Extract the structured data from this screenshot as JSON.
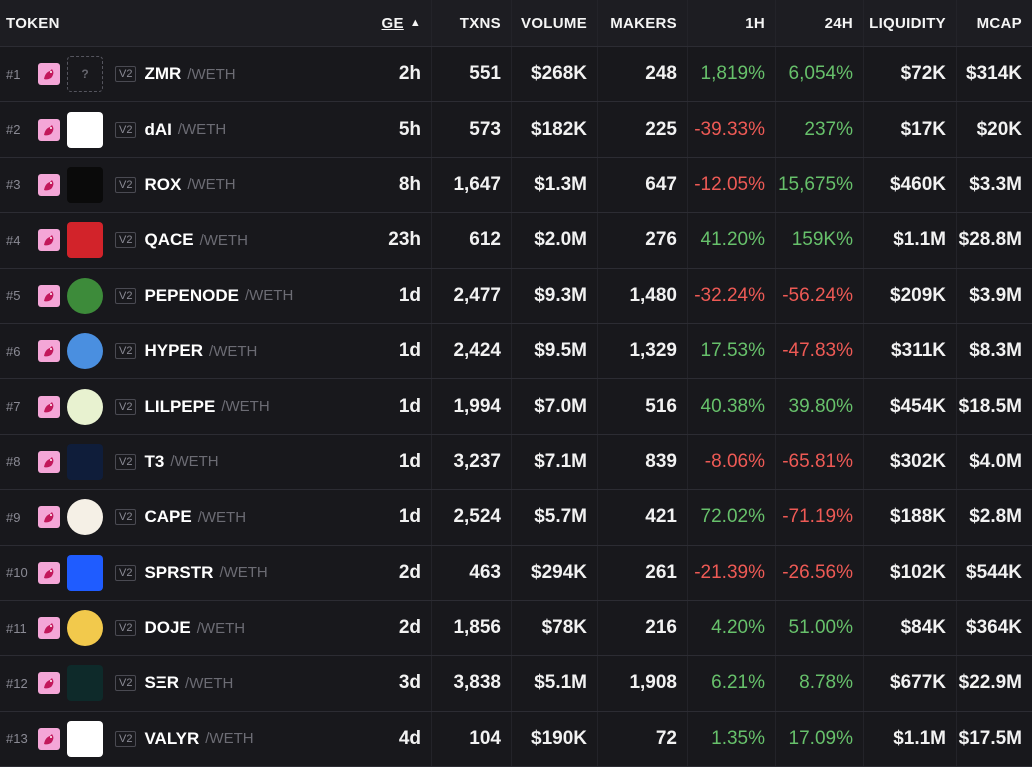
{
  "header": {
    "token": "TOKEN",
    "age": "GE",
    "txns": "TXNS",
    "volume": "VOLUME",
    "makers": "MAKERS",
    "h1": "1H",
    "h24": "24H",
    "liquidity": "LIQUIDITY",
    "mcap": "MCAP",
    "sort_icon": "▲"
  },
  "dex_badge": "V2",
  "quote": "/WETH",
  "rows": [
    {
      "rank": "#1",
      "symbol": "ZMR",
      "age": "2h",
      "txns": "551",
      "volume": "$268K",
      "makers": "248",
      "h1": "1,819%",
      "h24": "6,054%",
      "liq": "$72K",
      "mcap": "$314K",
      "h1_dir": "pos",
      "h24_dir": "pos",
      "logo": "placeholder",
      "logo_text": "?"
    },
    {
      "rank": "#2",
      "symbol": "dAI",
      "age": "5h",
      "txns": "573",
      "volume": "$182K",
      "makers": "225",
      "h1": "-39.33%",
      "h24": "237%",
      "liq": "$17K",
      "mcap": "$20K",
      "h1_dir": "neg",
      "h24_dir": "pos",
      "logo": "white",
      "logo_text": ""
    },
    {
      "rank": "#3",
      "symbol": "ROX",
      "age": "8h",
      "txns": "1,647",
      "volume": "$1.3M",
      "makers": "647",
      "h1": "-12.05%",
      "h24": "15,675%",
      "liq": "$460K",
      "mcap": "$3.3M",
      "h1_dir": "neg",
      "h24_dir": "pos",
      "logo": "black",
      "logo_text": ""
    },
    {
      "rank": "#4",
      "symbol": "QACE",
      "age": "23h",
      "txns": "612",
      "volume": "$2.0M",
      "makers": "276",
      "h1": "41.20%",
      "h24": "159K%",
      "liq": "$1.1M",
      "mcap": "$28.8M",
      "h1_dir": "pos",
      "h24_dir": "pos",
      "logo": "red",
      "logo_text": ""
    },
    {
      "rank": "#5",
      "symbol": "PEPENODE",
      "age": "1d",
      "txns": "2,477",
      "volume": "$9.3M",
      "makers": "1,480",
      "h1": "-32.24%",
      "h24": "-56.24%",
      "liq": "$209K",
      "mcap": "$3.9M",
      "h1_dir": "neg",
      "h24_dir": "neg",
      "logo": "green",
      "logo_text": ""
    },
    {
      "rank": "#6",
      "symbol": "HYPER",
      "age": "1d",
      "txns": "2,424",
      "volume": "$9.5M",
      "makers": "1,329",
      "h1": "17.53%",
      "h24": "-47.83%",
      "liq": "$311K",
      "mcap": "$8.3M",
      "h1_dir": "pos",
      "h24_dir": "neg",
      "logo": "blue",
      "logo_text": ""
    },
    {
      "rank": "#7",
      "symbol": "LILPEPE",
      "age": "1d",
      "txns": "1,994",
      "volume": "$7.0M",
      "makers": "516",
      "h1": "40.38%",
      "h24": "39.80%",
      "liq": "$454K",
      "mcap": "$18.5M",
      "h1_dir": "pos",
      "h24_dir": "pos",
      "logo": "pepe",
      "logo_text": ""
    },
    {
      "rank": "#8",
      "symbol": "T3",
      "age": "1d",
      "txns": "3,237",
      "volume": "$7.1M",
      "makers": "839",
      "h1": "-8.06%",
      "h24": "-65.81%",
      "liq": "$302K",
      "mcap": "$4.0M",
      "h1_dir": "neg",
      "h24_dir": "neg",
      "logo": "navy",
      "logo_text": ""
    },
    {
      "rank": "#9",
      "symbol": "CAPE",
      "age": "1d",
      "txns": "2,524",
      "volume": "$5.7M",
      "makers": "421",
      "h1": "72.02%",
      "h24": "-71.19%",
      "liq": "$188K",
      "mcap": "$2.8M",
      "h1_dir": "pos",
      "h24_dir": "neg",
      "logo": "cape",
      "logo_text": ""
    },
    {
      "rank": "#10",
      "symbol": "SPRSTR",
      "age": "2d",
      "txns": "463",
      "volume": "$294K",
      "makers": "261",
      "h1": "-21.39%",
      "h24": "-26.56%",
      "liq": "$102K",
      "mcap": "$544K",
      "h1_dir": "neg",
      "h24_dir": "neg",
      "logo": "brightblue",
      "logo_text": ""
    },
    {
      "rank": "#11",
      "symbol": "DOJE",
      "age": "2d",
      "txns": "1,856",
      "volume": "$78K",
      "makers": "216",
      "h1": "4.20%",
      "h24": "51.00%",
      "liq": "$84K",
      "mcap": "$364K",
      "h1_dir": "pos",
      "h24_dir": "pos",
      "logo": "gold",
      "logo_text": ""
    },
    {
      "rank": "#12",
      "symbol": "SΞR",
      "age": "3d",
      "txns": "3,838",
      "volume": "$5.1M",
      "makers": "1,908",
      "h1": "6.21%",
      "h24": "8.78%",
      "liq": "$677K",
      "mcap": "$22.9M",
      "h1_dir": "pos",
      "h24_dir": "pos",
      "logo": "teal",
      "logo_text": ""
    },
    {
      "rank": "#13",
      "symbol": "VALYR",
      "age": "4d",
      "txns": "104",
      "volume": "$190K",
      "makers": "72",
      "h1": "1.35%",
      "h24": "17.09%",
      "liq": "$1.1M",
      "mcap": "$17.5M",
      "h1_dir": "pos",
      "h24_dir": "pos",
      "logo": "snow",
      "logo_text": ""
    }
  ],
  "logo_colors": {
    "placeholder": "transparent",
    "white": "#ffffff",
    "black": "#0a0a0a",
    "red": "#d2232a",
    "green": "#3d8b3a",
    "blue": "#4a8fe0",
    "pepe": "#e8f2d0",
    "navy": "#0f1d3a",
    "cape": "#f5f0e6",
    "brightblue": "#1f5cff",
    "gold": "#f2c94c",
    "teal": "#0e2a2a",
    "snow": "#ffffff"
  }
}
